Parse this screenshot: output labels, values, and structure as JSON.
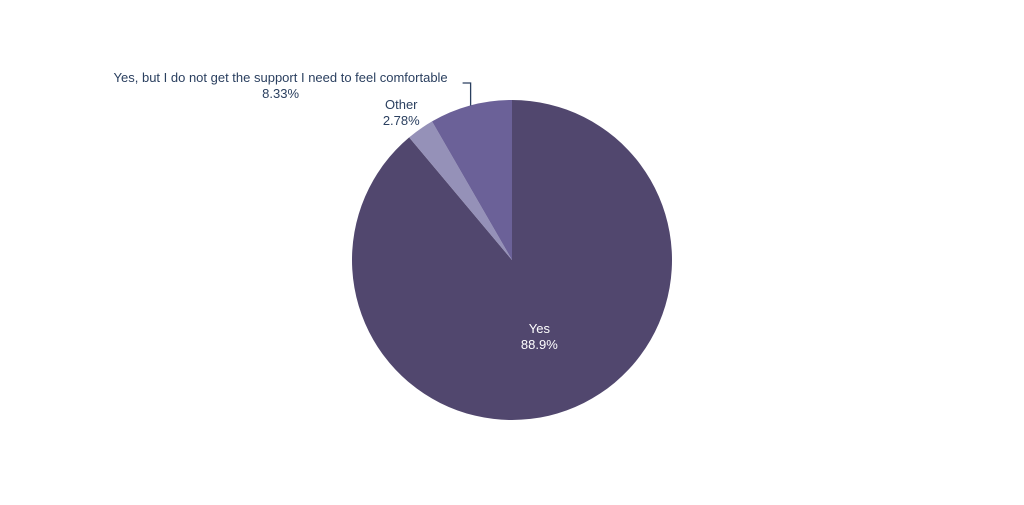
{
  "chart_data": {
    "type": "pie",
    "title": "",
    "direction": "clockwise",
    "start_angle_deg": 90,
    "slices": [
      {
        "label": "Yes",
        "value": 88.9,
        "text": "88.9%",
        "color": "#51476e",
        "label_position": "inside"
      },
      {
        "label": "Other",
        "value": 2.78,
        "text": "2.78%",
        "color": "#9591b8",
        "label_position": "outside"
      },
      {
        "label": "Yes, but I do not get the support I need to feel comfortable",
        "value": 8.33,
        "text": "8.33%",
        "color": "#6b6198",
        "label_position": "outside"
      }
    ],
    "legend": "none"
  }
}
